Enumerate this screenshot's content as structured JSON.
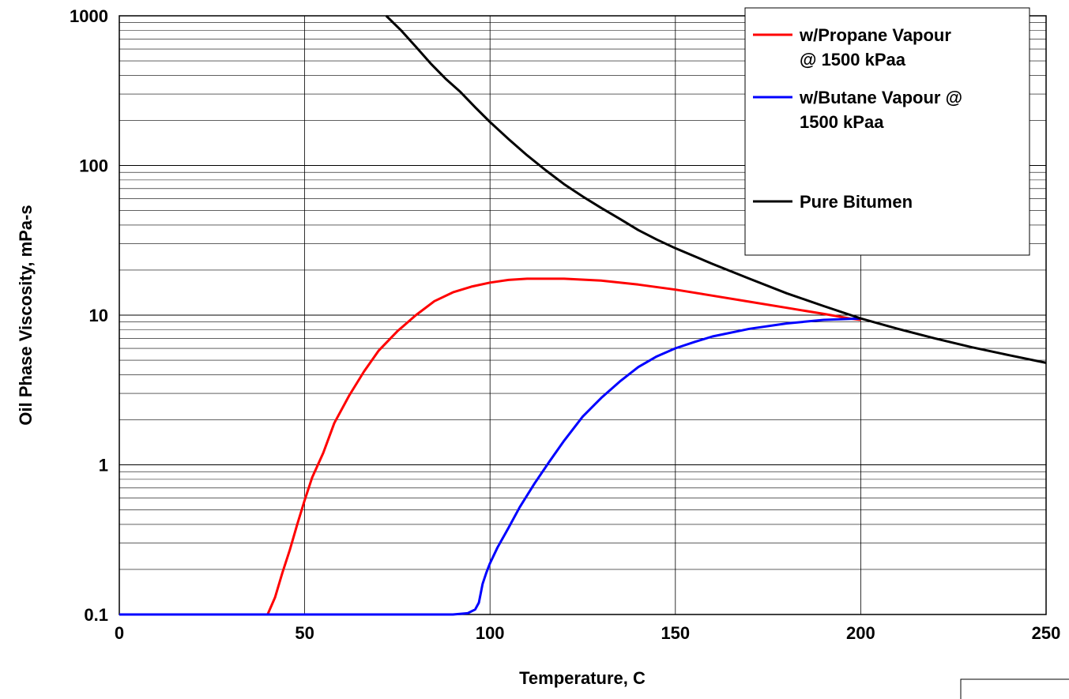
{
  "chart_data": {
    "type": "line",
    "title": "",
    "xlabel": "Temperature, C",
    "ylabel": "Oil Phase Viscosity, mPa-s",
    "xlim": [
      0,
      250
    ],
    "ylim": [
      0.1,
      1000
    ],
    "yscale": "log",
    "grid": true,
    "legend_position": "top-right",
    "x_ticks": [
      "0",
      "50",
      "100",
      "150",
      "200",
      "250"
    ],
    "y_ticks": [
      "0.1",
      "1",
      "10",
      "100",
      "1000"
    ],
    "series": [
      {
        "name": "w/Propane Vapour @ 1500 kPaa",
        "legend_lines": [
          "w/Propane Vapour",
          "@ 1500 kPaa"
        ],
        "color": "#ff0000",
        "points": [
          [
            0,
            0.1
          ],
          [
            40,
            0.1
          ],
          [
            42,
            0.13
          ],
          [
            44,
            0.19
          ],
          [
            46,
            0.27
          ],
          [
            48,
            0.4
          ],
          [
            50,
            0.58
          ],
          [
            52,
            0.82
          ],
          [
            55,
            1.2
          ],
          [
            58,
            1.9
          ],
          [
            62,
            2.9
          ],
          [
            66,
            4.2
          ],
          [
            70,
            5.8
          ],
          [
            75,
            7.8
          ],
          [
            80,
            10
          ],
          [
            85,
            12.4
          ],
          [
            90,
            14.2
          ],
          [
            95,
            15.5
          ],
          [
            100,
            16.5
          ],
          [
            105,
            17.2
          ],
          [
            110,
            17.5
          ],
          [
            120,
            17.5
          ],
          [
            130,
            17
          ],
          [
            140,
            16
          ],
          [
            150,
            14.8
          ],
          [
            160,
            13.5
          ],
          [
            170,
            12.3
          ],
          [
            180,
            11.2
          ],
          [
            190,
            10.2
          ],
          [
            197,
            9.5
          ],
          [
            200,
            9.3
          ]
        ]
      },
      {
        "name": "w/Butane Vapour @ 1500 kPaa",
        "legend_lines": [
          "w/Butane Vapour @",
          "1500 kPaa"
        ],
        "color": "#0000ff",
        "points": [
          [
            0,
            0.1
          ],
          [
            90,
            0.1
          ],
          [
            94,
            0.102
          ],
          [
            96,
            0.108
          ],
          [
            97,
            0.12
          ],
          [
            98,
            0.16
          ],
          [
            99,
            0.19
          ],
          [
            100,
            0.22
          ],
          [
            102,
            0.28
          ],
          [
            105,
            0.38
          ],
          [
            108,
            0.52
          ],
          [
            112,
            0.75
          ],
          [
            116,
            1.05
          ],
          [
            120,
            1.45
          ],
          [
            125,
            2.1
          ],
          [
            130,
            2.8
          ],
          [
            135,
            3.6
          ],
          [
            140,
            4.5
          ],
          [
            145,
            5.3
          ],
          [
            150,
            6
          ],
          [
            155,
            6.6
          ],
          [
            160,
            7.2
          ],
          [
            170,
            8.1
          ],
          [
            180,
            8.8
          ],
          [
            190,
            9.3
          ],
          [
            200,
            9.5
          ]
        ]
      },
      {
        "name": "Pure Bitumen",
        "legend_lines": [
          "Pure Bitumen"
        ],
        "color": "#000000",
        "points": [
          [
            72,
            1000
          ],
          [
            76,
            800
          ],
          [
            80,
            620
          ],
          [
            84,
            480
          ],
          [
            88,
            380
          ],
          [
            92,
            310
          ],
          [
            96,
            245
          ],
          [
            100,
            195
          ],
          [
            105,
            150
          ],
          [
            110,
            117
          ],
          [
            115,
            93
          ],
          [
            120,
            75
          ],
          [
            125,
            62
          ],
          [
            130,
            52
          ],
          [
            135,
            44
          ],
          [
            140,
            37
          ],
          [
            145,
            32
          ],
          [
            150,
            28
          ],
          [
            160,
            22
          ],
          [
            170,
            17.5
          ],
          [
            180,
            14
          ],
          [
            190,
            11.5
          ],
          [
            200,
            9.5
          ],
          [
            210,
            8.1
          ],
          [
            220,
            7
          ],
          [
            230,
            6.1
          ],
          [
            240,
            5.4
          ],
          [
            250,
            4.8
          ]
        ]
      }
    ]
  }
}
